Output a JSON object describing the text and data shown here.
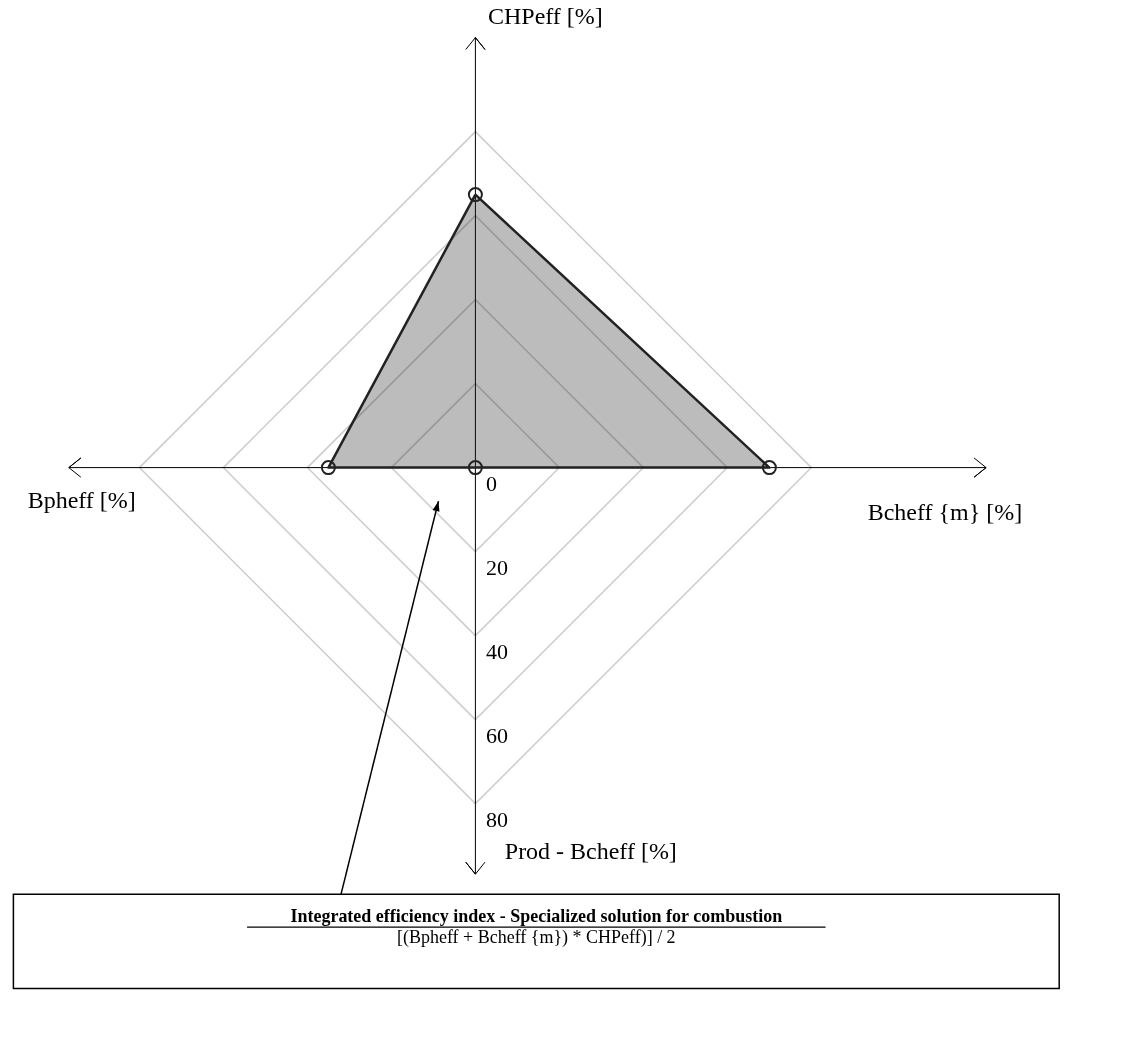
{
  "chart_data": {
    "type": "radar",
    "categories": [
      "CHPeff [%]",
      "Bcheff {m} [%]",
      "Prod - Bcheff [%]",
      "Bpheff [%]"
    ],
    "series": [
      {
        "color": "#222222",
        "values": [
          65,
          70,
          0,
          35
        ]
      }
    ],
    "ylim": [
      0,
      80
    ],
    "yticks": [
      0,
      20,
      40,
      60,
      80
    ],
    "grid": true,
    "marker": "circle",
    "annotations": [
      "Integrated efficiency index - Specialized solution for combustion",
      "[(Bpheff + Bcheff {m}) * CHPeff)] / 2"
    ]
  }
}
